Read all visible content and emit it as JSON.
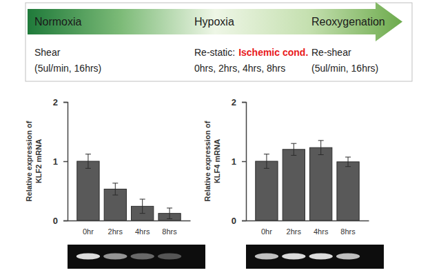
{
  "banner": {
    "stages": [
      {
        "name": "Normoxia",
        "line1": [
          {
            "text": "Shear"
          }
        ],
        "line2": "(5ul/min, 16hrs)"
      },
      {
        "name": "Hypoxia",
        "line1": [
          {
            "text": "Re-static:"
          },
          {
            "text": "Ischemic cond.",
            "color": "#e8191c"
          }
        ],
        "line2": "0hrs, 2hrs, 4hrs, 8hrs"
      },
      {
        "name": "Reoxygenation",
        "line1": [
          {
            "text": "Re-shear"
          }
        ],
        "line2": "(5ul/min, 16hrs)"
      }
    ]
  },
  "chart_data": [
    {
      "type": "bar",
      "y_label": "Relative expression of\nKLF2 mRNA",
      "categories": [
        "0hr",
        "2hrs",
        "4hrs",
        "8hrs"
      ],
      "values": [
        1.0,
        0.53,
        0.24,
        0.12
      ],
      "errors": [
        0.12,
        0.1,
        0.12,
        0.09
      ],
      "color": "#595959",
      "ylim": [
        0,
        2
      ],
      "yticks": [
        0,
        1,
        2
      ]
    },
    {
      "type": "bar",
      "y_label": "Relative expression of\nKLF4 mRNA",
      "categories": [
        "0hr",
        "2hrs",
        "4hrs",
        "8hrs"
      ],
      "values": [
        1.0,
        1.2,
        1.23,
        0.99
      ],
      "errors": [
        0.12,
        0.1,
        0.12,
        0.08
      ],
      "color": "#595959",
      "ylim": [
        0,
        2
      ],
      "yticks": [
        0,
        1,
        2
      ]
    }
  ]
}
